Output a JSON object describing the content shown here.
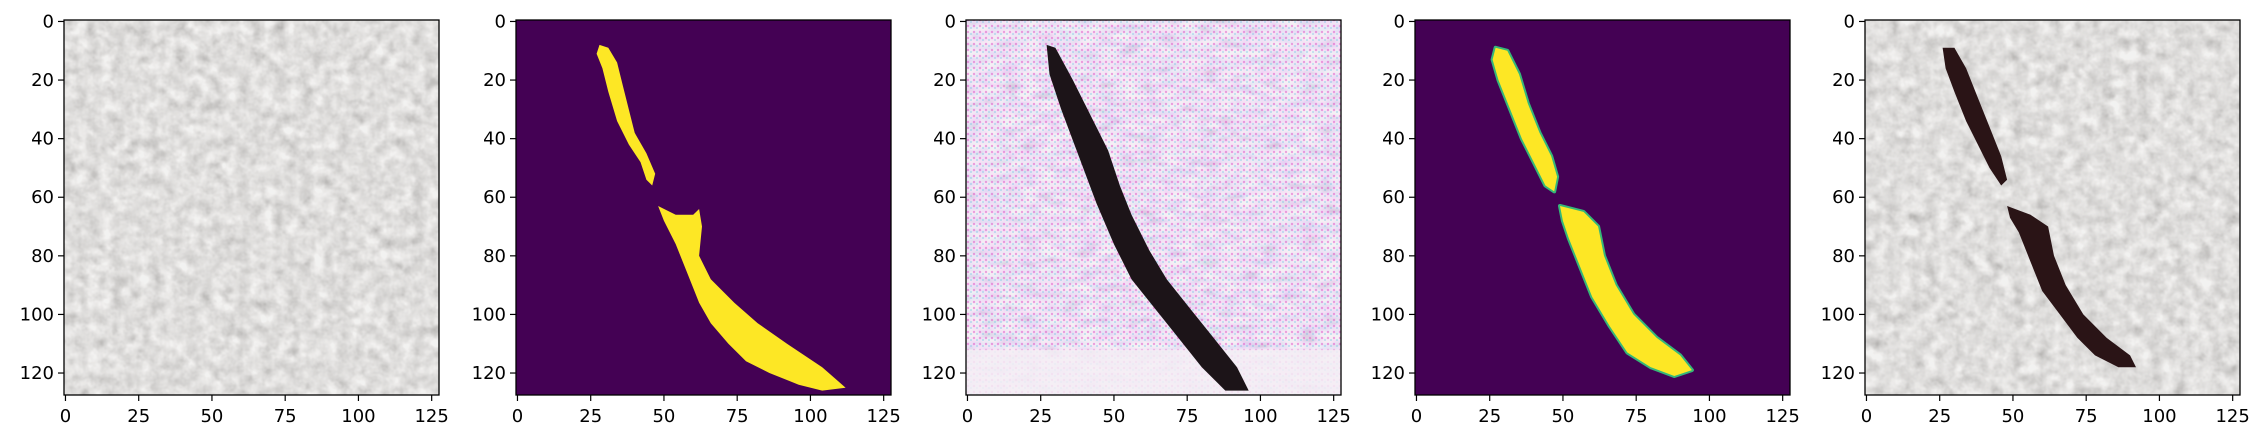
{
  "figure": {
    "panel_count": 5,
    "panels": [
      {
        "content": "texture-image",
        "colormap": "photo",
        "background": "#7d7b78"
      },
      {
        "content": "mask",
        "colormap": "viridis",
        "background": "#440154",
        "foreground": "#fde725"
      },
      {
        "content": "generated-image",
        "colormap": "photo",
        "background": "#d8c4d8"
      },
      {
        "content": "mask-prediction",
        "colormap": "viridis",
        "background": "#440154",
        "foreground": "#fde725"
      },
      {
        "content": "overlay-image",
        "colormap": "photo",
        "background": "#7d7b78"
      }
    ],
    "x_ticks": [
      "0",
      "25",
      "50",
      "75",
      "100",
      "125"
    ],
    "y_ticks": [
      "0",
      "20",
      "40",
      "60",
      "80",
      "100",
      "120"
    ],
    "x_tick_values": [
      0,
      25,
      50,
      75,
      100,
      125
    ],
    "y_tick_values": [
      0,
      20,
      40,
      60,
      80,
      100,
      120
    ],
    "image_extent": [
      -0.5,
      127.5
    ]
  }
}
